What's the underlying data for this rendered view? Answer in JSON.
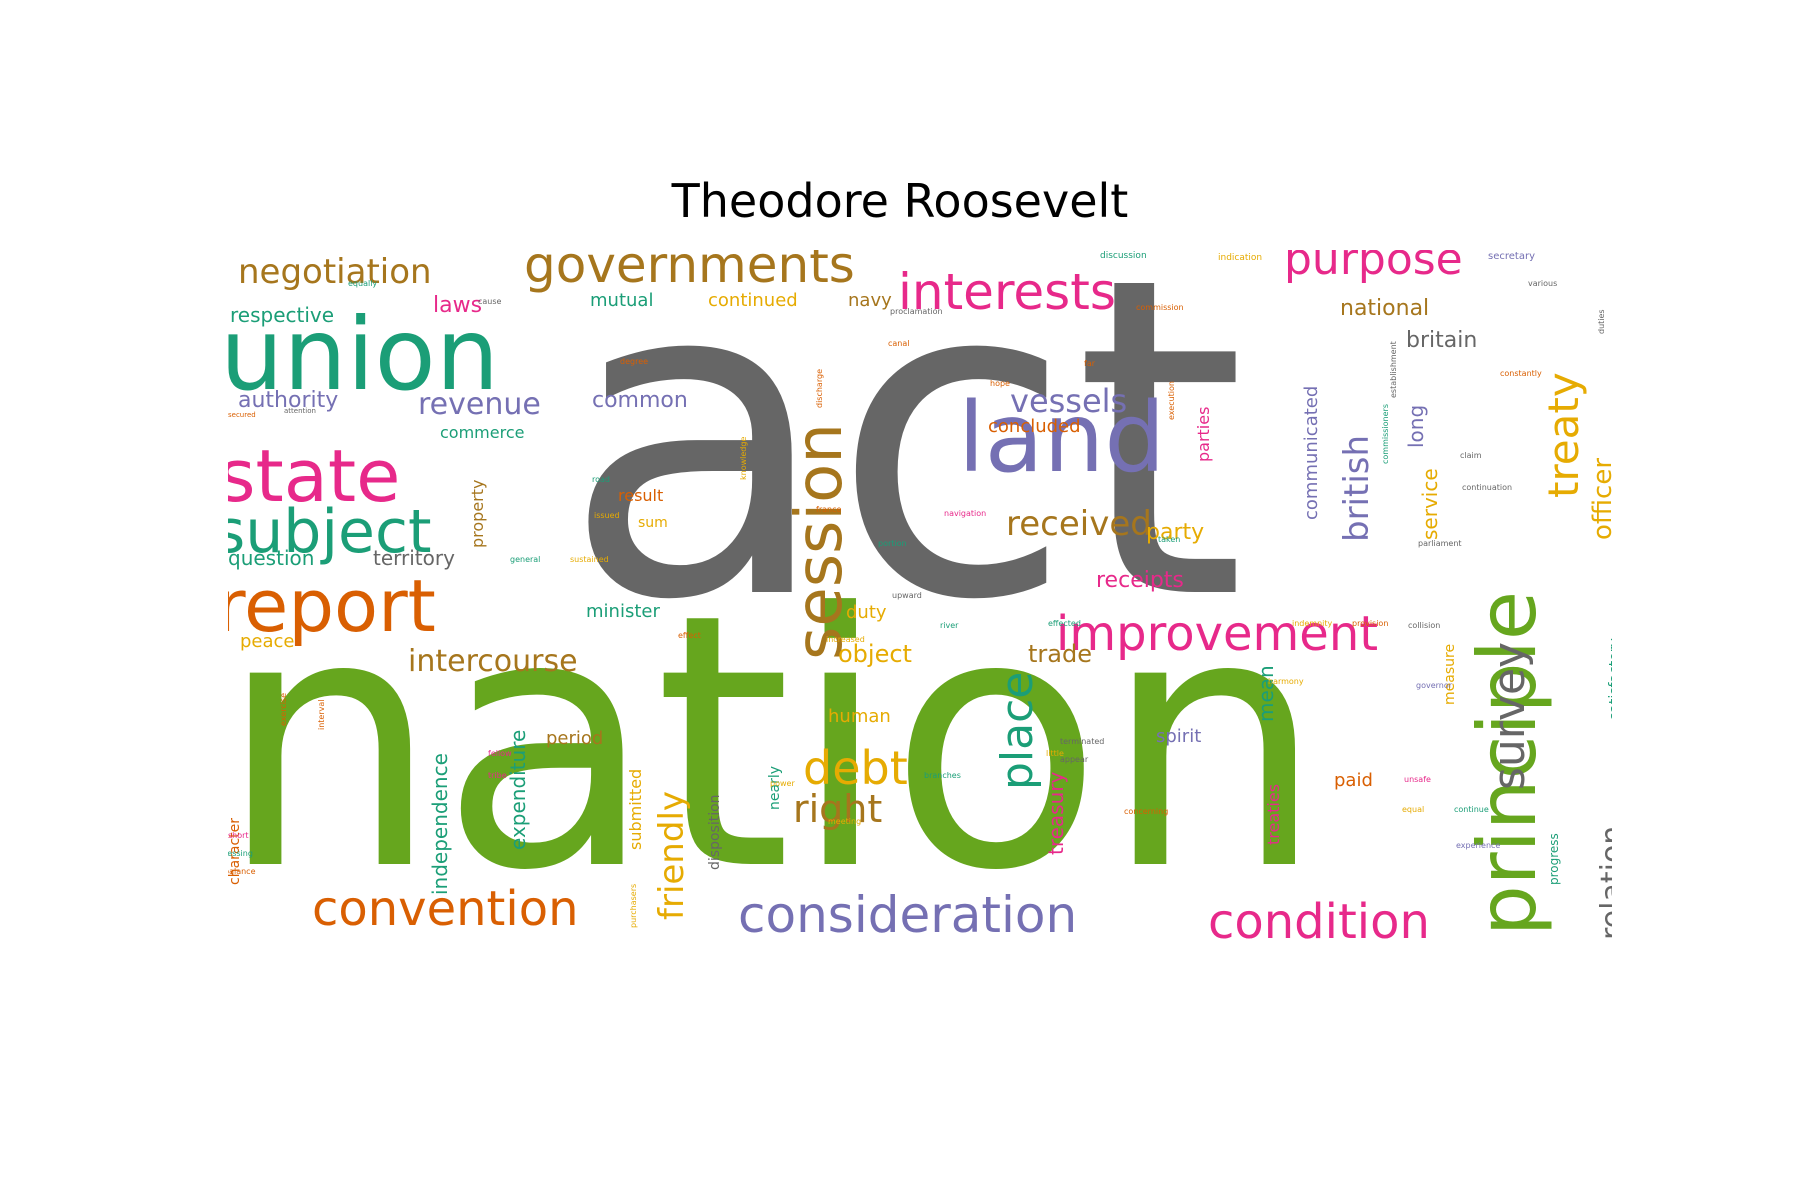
{
  "title": "Theodore Roosevelt",
  "colors": {
    "gray": "#666666",
    "green": "#66a61e",
    "teal": "#1b9e77",
    "orange": "#d95f02",
    "purple": "#7570b3",
    "pink": "#e7298a",
    "yellow": "#e6ab02",
    "brown": "#a6761d"
  },
  "words": [
    "act",
    "nation",
    "union",
    "state",
    "subject",
    "report",
    "land",
    "session",
    "principle",
    "governments",
    "interests",
    "purpose",
    "negotiation",
    "treaty",
    "survey",
    "improvement",
    "consideration",
    "condition",
    "convention",
    "debt",
    "right",
    "place",
    "received",
    "vessels",
    "revenue",
    "intercourse",
    "friendly",
    "british",
    "officer",
    "relation",
    "laws",
    "respective",
    "authority",
    "common",
    "commerce",
    "concluded",
    "national",
    "britain",
    "party",
    "receipts",
    "territory",
    "question",
    "minister",
    "object",
    "trade",
    "mutual",
    "continued",
    "navy",
    "communicated",
    "parties",
    "long",
    "service",
    "measure",
    "satisfactory",
    "peace",
    "duty",
    "human",
    "mean",
    "treasury",
    "expenditure",
    "independence",
    "submitted",
    "disposition",
    "spirit",
    "paid",
    "treaties",
    "period",
    "nearly",
    "result",
    "sum",
    "property",
    "character",
    "progress",
    "secretary",
    "equally",
    "cause",
    "discussion",
    "indication",
    "commission",
    "proclamation",
    "canal",
    "degree",
    "discharge",
    "hope",
    "attention",
    "secured",
    "road",
    "issued",
    "general",
    "sustained",
    "upward",
    "effect",
    "increased",
    "river",
    "effected",
    "indemnity",
    "collision",
    "provision",
    "fellow",
    "tribe",
    "power",
    "branches",
    "meeting",
    "little",
    "harmony",
    "governor",
    "terminated",
    "appear",
    "unsafe",
    "equal",
    "continue",
    "experience",
    "concerning",
    "short",
    "blessing",
    "balance",
    "exercise",
    "interval",
    "purchasers",
    "knowledge",
    "france",
    "portion",
    "navigation",
    "taken",
    "parliament",
    "commissioners",
    "establishment",
    "continuation",
    "claim",
    "various",
    "duties",
    "constantly",
    "far",
    "execution",
    "appropriation"
  ]
}
